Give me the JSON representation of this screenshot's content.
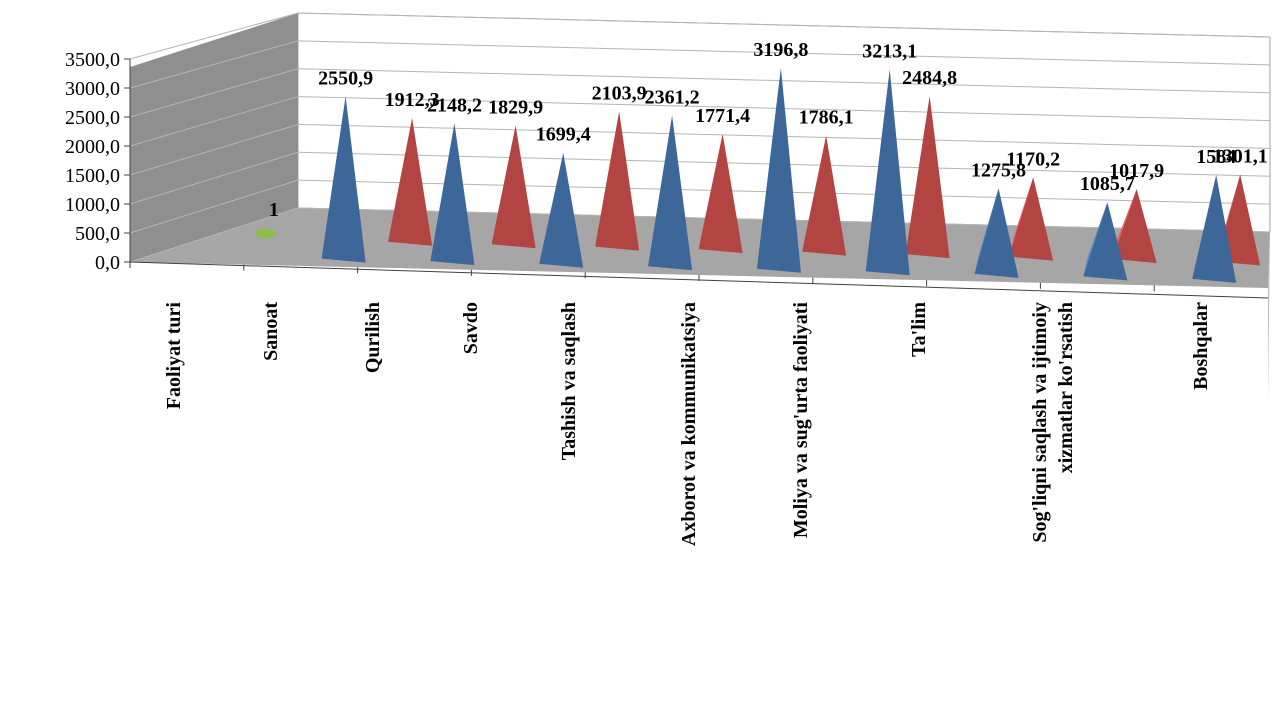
{
  "chart_data": {
    "type": "bar",
    "shape": "3d-pyramid",
    "categories": [
      "Faoliyat turi",
      "Sanoat",
      "Qurilish",
      "Savdo",
      "Tashish va saqlash",
      "Axborot va kommunikatsiya",
      "Moliya va sug'urta faoliyati",
      "Ta'lim",
      "Sog'liqni saqlash va ijtimoiy xizmatlar ko'rsatish",
      "Boshqalar"
    ],
    "category_label_lines": [
      [
        "Faoliyat turi"
      ],
      [
        "Sanoat"
      ],
      [
        "Qurilish"
      ],
      [
        "Savdo"
      ],
      [
        "Tashish va saqlash"
      ],
      [
        "Axborot va kommunikatsiya"
      ],
      [
        "Moliya va sug'urta faoliyati"
      ],
      [
        "Ta'lim"
      ],
      [
        "Sog'liqni saqlash va ijtimoiy",
        "xizmatlar ko'rsatish"
      ],
      [
        "Boshqalar"
      ]
    ],
    "series": [
      {
        "color": "#4a7ebb",
        "values": [
          null,
          2550.9,
          2148.2,
          1699.4,
          2361.2,
          3196.8,
          3213.1,
          1275.8,
          1085.7,
          1584
        ],
        "labels": [
          "",
          "2550,9",
          "2148,2",
          "1699,4",
          "2361,2",
          "3196,8",
          "3213,1",
          "1275,8",
          "1085,7",
          "1584"
        ]
      },
      {
        "color": "#d9534f",
        "values": [
          null,
          1912.3,
          1829.9,
          2103.9,
          1771.4,
          1786.1,
          2484.8,
          1170.2,
          1017.9,
          1301.1
        ],
        "labels": [
          "",
          "1912,3",
          "1829,9",
          "2103,9",
          "1771,4",
          "1786,1",
          "2484,8",
          "1170,2",
          "1017,9",
          "1301,1"
        ]
      },
      {
        "color": "#8cbf4a",
        "values": [
          1,
          null,
          null,
          null,
          null,
          null,
          null,
          null,
          null,
          null
        ],
        "labels": [
          "1",
          "",
          "",
          "",
          "",
          "",
          "",
          "",
          "",
          ""
        ]
      }
    ],
    "y_tick_labels": [
      "0,0",
      "500,0",
      "1000,0",
      "1500,0",
      "2000,0",
      "2500,0",
      "3000,0",
      "3500,0"
    ],
    "ylim": [
      0,
      3500
    ],
    "grid": true,
    "legend": "none",
    "title": "",
    "xlabel": "",
    "ylabel": ""
  }
}
